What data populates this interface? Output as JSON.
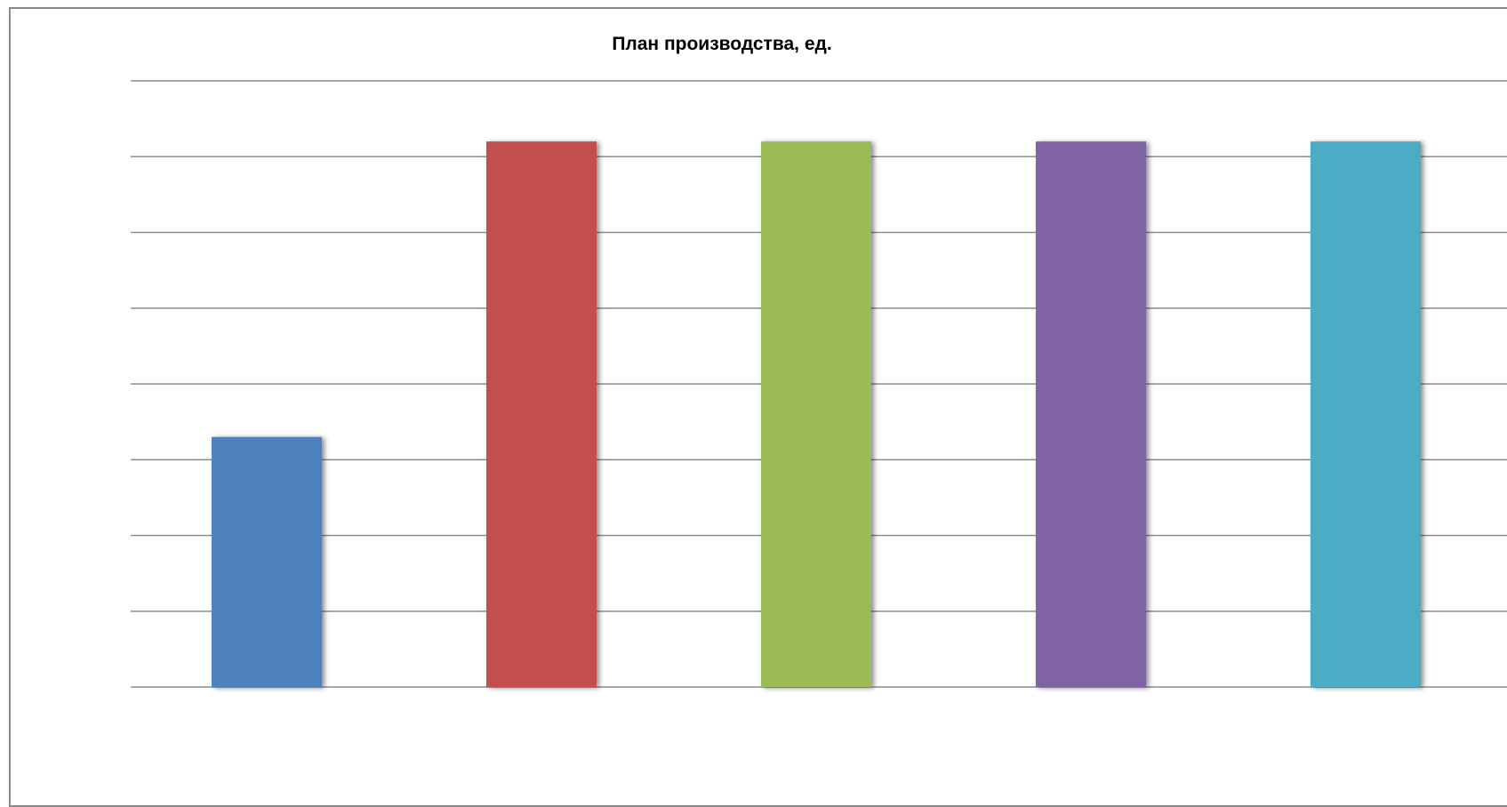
{
  "chart_data": {
    "type": "bar",
    "title": "План производства, ед.",
    "xlabel": "",
    "ylabel": "",
    "categories": [
      "",
      "",
      "",
      "",
      ""
    ],
    "values": [
      3.3,
      7.2,
      7.2,
      7.2,
      7.2
    ],
    "ylim": [
      0,
      8
    ],
    "grid": true,
    "legend": "none",
    "colors": [
      "#4f81bd",
      "#c0504d",
      "#9bbb59",
      "#8064a2",
      "#4bacc6"
    ],
    "gridline_color": "#8c8c8c",
    "frame_color": "#8a8a8a"
  }
}
